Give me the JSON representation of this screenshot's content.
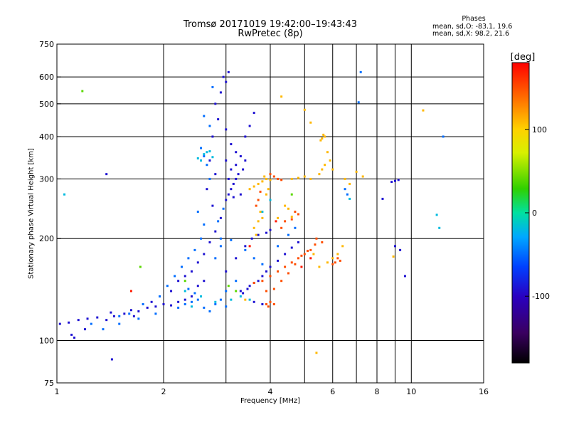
{
  "chart_data": {
    "type": "scatter",
    "title_line1": "Tromsø 20171019 19:42:00–19:43:43",
    "title_line2": "RwPretec (8p)",
    "phase_info": {
      "header": "Phases",
      "line_o": "mean, sd,O: -83.1, 19.6",
      "line_x": "mean, sd,X:  98.2, 21.6"
    },
    "xlabel": "Frequency [MHz]",
    "ylabel": "Stationary phase Virtual Height [km]",
    "xscale": "log",
    "yscale": "log",
    "xlim": [
      1,
      16
    ],
    "ylim": [
      75,
      750
    ],
    "x_ticks": [
      1,
      2,
      4,
      6,
      8,
      10,
      16
    ],
    "x_tick_labels": [
      "1",
      "2",
      "4",
      "6",
      "8",
      "10",
      "16"
    ],
    "y_ticks": [
      75,
      100,
      200,
      300,
      400,
      500,
      600,
      750
    ],
    "y_tick_labels": [
      "75",
      "100",
      "200",
      "300",
      "400",
      "500",
      "600",
      "750"
    ],
    "x_gridlines": [
      2,
      3,
      4,
      5,
      6,
      7,
      8,
      9,
      10
    ],
    "y_gridlines": [
      100,
      200,
      300,
      400,
      500,
      600
    ],
    "grid": true,
    "colorbar": {
      "label": "[deg]",
      "range": [
        -180,
        180
      ],
      "ticks": [
        100,
        0,
        -100
      ],
      "tick_labels": [
        "100",
        "0",
        "-100"
      ]
    },
    "series": [
      {
        "phase_deg": -90,
        "points": [
          [
            1.02,
            112
          ],
          [
            1.08,
            113
          ],
          [
            1.15,
            115
          ],
          [
            1.22,
            116
          ],
          [
            1.3,
            117
          ],
          [
            1.38,
            115
          ],
          [
            1.45,
            118
          ],
          [
            1.1,
            104
          ],
          [
            1.12,
            102
          ],
          [
            1.2,
            108
          ],
          [
            1.42,
            121
          ],
          [
            1.55,
            120
          ],
          [
            1.62,
            123
          ],
          [
            1.7,
            122
          ],
          [
            1.8,
            125
          ],
          [
            1.9,
            126
          ],
          [
            2.0,
            128
          ],
          [
            2.1,
            127
          ],
          [
            2.2,
            130
          ],
          [
            2.3,
            132
          ],
          [
            2.4,
            135
          ],
          [
            2.1,
            140
          ],
          [
            2.2,
            150
          ],
          [
            2.3,
            155
          ],
          [
            2.4,
            160
          ],
          [
            2.5,
            170
          ],
          [
            2.6,
            180
          ],
          [
            2.7,
            195
          ],
          [
            2.8,
            210
          ],
          [
            2.9,
            230
          ],
          [
            2.75,
            250
          ],
          [
            2.65,
            280
          ],
          [
            2.8,
            310
          ],
          [
            2.7,
            340
          ],
          [
            2.75,
            400
          ],
          [
            2.85,
            450
          ],
          [
            2.8,
            500
          ],
          [
            2.9,
            540
          ],
          [
            3.0,
            580
          ],
          [
            3.05,
            620
          ],
          [
            2.95,
            600
          ],
          [
            3.0,
            260
          ],
          [
            3.05,
            270
          ],
          [
            3.1,
            280
          ],
          [
            3.15,
            290
          ],
          [
            3.2,
            300
          ],
          [
            3.1,
            320
          ],
          [
            3.0,
            340
          ],
          [
            3.2,
            330
          ],
          [
            3.3,
            350
          ],
          [
            3.25,
            310
          ],
          [
            3.15,
            265
          ],
          [
            3.05,
            300
          ],
          [
            3.35,
            320
          ],
          [
            3.4,
            340
          ],
          [
            3.3,
            270
          ],
          [
            3.2,
            360
          ],
          [
            3.1,
            380
          ],
          [
            3.0,
            420
          ],
          [
            3.4,
            400
          ],
          [
            3.5,
            430
          ],
          [
            3.6,
            470
          ],
          [
            3.3,
            140
          ],
          [
            3.5,
            145
          ],
          [
            3.7,
            150
          ],
          [
            3.8,
            155
          ],
          [
            3.9,
            160
          ],
          [
            4.0,
            165
          ],
          [
            4.2,
            172
          ],
          [
            4.4,
            180
          ],
          [
            4.6,
            188
          ],
          [
            4.8,
            195
          ],
          [
            3.55,
            200
          ],
          [
            3.7,
            205
          ],
          [
            3.9,
            208
          ],
          [
            4.0,
            212
          ],
          [
            3.6,
            148
          ],
          [
            3.45,
            142
          ],
          [
            3.35,
            138
          ],
          [
            3.6,
            130
          ],
          [
            3.8,
            128
          ],
          [
            2.6,
            150
          ],
          [
            2.5,
            145
          ],
          [
            3.0,
            160
          ],
          [
            3.2,
            175
          ],
          [
            3.4,
            190
          ],
          [
            9.0,
            190
          ],
          [
            9.3,
            185
          ],
          [
            9.6,
            155
          ],
          [
            8.8,
            294
          ],
          [
            9.0,
            296
          ],
          [
            9.2,
            298
          ],
          [
            8.3,
            262
          ],
          [
            1.38,
            310
          ],
          [
            1.43,
            88
          ],
          [
            1.65,
            118
          ],
          [
            1.85,
            130
          ]
        ]
      },
      {
        "phase_deg": -50,
        "points": [
          [
            1.25,
            112
          ],
          [
            1.35,
            108
          ],
          [
            1.5,
            118
          ],
          [
            1.6,
            120
          ],
          [
            1.75,
            128
          ],
          [
            1.95,
            135
          ],
          [
            2.05,
            145
          ],
          [
            2.15,
            155
          ],
          [
            2.25,
            165
          ],
          [
            2.35,
            175
          ],
          [
            2.45,
            185
          ],
          [
            2.55,
            200
          ],
          [
            2.6,
            220
          ],
          [
            2.5,
            240
          ],
          [
            2.7,
            300
          ],
          [
            2.6,
            350
          ],
          [
            2.65,
            330
          ],
          [
            2.55,
            370
          ],
          [
            2.7,
            430
          ],
          [
            2.6,
            460
          ],
          [
            2.75,
            560
          ],
          [
            2.2,
            125
          ],
          [
            2.3,
            128
          ],
          [
            2.4,
            130
          ],
          [
            2.5,
            132
          ],
          [
            2.6,
            125
          ],
          [
            2.7,
            122
          ],
          [
            2.8,
            128
          ],
          [
            2.9,
            132
          ],
          [
            3.0,
            126
          ],
          [
            2.45,
            138
          ],
          [
            2.35,
            142
          ],
          [
            1.9,
            120
          ],
          [
            1.7,
            116
          ],
          [
            1.5,
            112
          ],
          [
            2.9,
            190
          ],
          [
            2.8,
            175
          ],
          [
            3.1,
            198
          ],
          [
            3.4,
            185
          ],
          [
            3.6,
            175
          ],
          [
            3.8,
            168
          ],
          [
            4.2,
            190
          ],
          [
            4.5,
            205
          ],
          [
            4.7,
            215
          ],
          [
            12.3,
            400
          ],
          [
            7.2,
            620
          ],
          [
            7.1,
            505
          ],
          [
            6.5,
            280
          ],
          [
            6.6,
            270
          ],
          [
            3.0,
            140
          ],
          [
            3.2,
            150
          ],
          [
            2.9,
            200
          ],
          [
            2.85,
            225
          ],
          [
            2.95,
            245
          ]
        ]
      },
      {
        "phase_deg": -20,
        "points": [
          [
            2.55,
            340
          ],
          [
            2.6,
            355
          ],
          [
            2.65,
            360
          ],
          [
            2.5,
            345
          ],
          [
            2.7,
            362
          ],
          [
            2.75,
            348
          ],
          [
            1.05,
            270
          ],
          [
            2.8,
            130
          ],
          [
            3.1,
            132
          ],
          [
            3.3,
            135
          ],
          [
            3.5,
            132
          ],
          [
            2.4,
            126
          ],
          [
            2.3,
            140
          ],
          [
            2.55,
            135
          ],
          [
            4.0,
            260
          ],
          [
            3.8,
            240
          ],
          [
            11.8,
            235
          ],
          [
            6.7,
            262
          ],
          [
            12.0,
            215
          ]
        ]
      },
      {
        "phase_deg": 40,
        "points": [
          [
            1.18,
            545
          ],
          [
            2.3,
            150
          ],
          [
            3.05,
            145
          ],
          [
            3.2,
            140
          ],
          [
            1.72,
            165
          ],
          [
            4.6,
            270
          ]
        ]
      },
      {
        "phase_deg": 110,
        "points": [
          [
            3.5,
            280
          ],
          [
            3.6,
            285
          ],
          [
            3.7,
            290
          ],
          [
            3.8,
            295
          ],
          [
            3.9,
            300
          ],
          [
            4.0,
            298
          ],
          [
            3.85,
            305
          ],
          [
            3.75,
            240
          ],
          [
            3.7,
            225
          ],
          [
            3.6,
            215
          ],
          [
            3.65,
            205
          ],
          [
            3.8,
            230
          ],
          [
            3.9,
            270
          ],
          [
            3.95,
            280
          ],
          [
            4.6,
            300
          ],
          [
            4.8,
            302
          ],
          [
            5.0,
            305
          ],
          [
            5.2,
            300
          ],
          [
            5.5,
            310
          ],
          [
            5.6,
            320
          ],
          [
            5.7,
            330
          ],
          [
            5.6,
            395
          ],
          [
            5.65,
            405
          ],
          [
            5.7,
            400
          ],
          [
            5.55,
            390
          ],
          [
            4.3,
            525
          ],
          [
            5.0,
            480
          ],
          [
            5.2,
            440
          ],
          [
            4.4,
            250
          ],
          [
            4.5,
            245
          ],
          [
            4.6,
            232
          ],
          [
            4.2,
            230
          ],
          [
            5.9,
            340
          ],
          [
            5.8,
            360
          ],
          [
            6.0,
            320
          ],
          [
            5.5,
            165
          ],
          [
            5.8,
            170
          ],
          [
            5.3,
            180
          ],
          [
            6.5,
            300
          ],
          [
            6.7,
            290
          ],
          [
            6.2,
            180
          ],
          [
            6.0,
            175
          ],
          [
            7.3,
            305
          ],
          [
            7.0,
            315
          ],
          [
            5.4,
            92
          ],
          [
            10.8,
            478
          ],
          [
            8.9,
            177
          ],
          [
            6.4,
            190
          ],
          [
            3.4,
            132
          ]
        ]
      },
      {
        "phase_deg": 150,
        "points": [
          [
            3.6,
            148
          ],
          [
            3.8,
            150
          ],
          [
            4.0,
            155
          ],
          [
            4.2,
            160
          ],
          [
            4.4,
            165
          ],
          [
            4.6,
            170
          ],
          [
            4.8,
            175
          ],
          [
            5.0,
            180
          ],
          [
            5.2,
            185
          ],
          [
            3.9,
            140
          ],
          [
            4.1,
            142
          ],
          [
            4.3,
            150
          ],
          [
            4.5,
            158
          ],
          [
            4.7,
            168
          ],
          [
            3.9,
            128
          ],
          [
            4.0,
            130
          ],
          [
            4.1,
            128
          ],
          [
            3.95,
            126
          ],
          [
            4.9,
            178
          ],
          [
            5.1,
            184
          ],
          [
            5.35,
            192
          ],
          [
            3.7,
            260
          ],
          [
            3.75,
            275
          ],
          [
            3.65,
            250
          ],
          [
            4.2,
            300
          ],
          [
            4.1,
            305
          ],
          [
            4.0,
            310
          ],
          [
            4.3,
            298
          ],
          [
            4.7,
            240
          ],
          [
            4.8,
            236
          ],
          [
            4.6,
            228
          ],
          [
            6.1,
            170
          ],
          [
            6.3,
            172
          ],
          [
            6.0,
            168
          ],
          [
            6.2,
            175
          ],
          [
            5.4,
            200
          ],
          [
            5.6,
            195
          ],
          [
            4.4,
            225
          ],
          [
            4.3,
            215
          ]
        ]
      },
      {
        "phase_deg": 170,
        "points": [
          [
            4.15,
            225
          ],
          [
            1.62,
            140
          ],
          [
            3.5,
            190
          ],
          [
            5.2,
            175
          ],
          [
            4.9,
            165
          ]
        ]
      }
    ]
  }
}
